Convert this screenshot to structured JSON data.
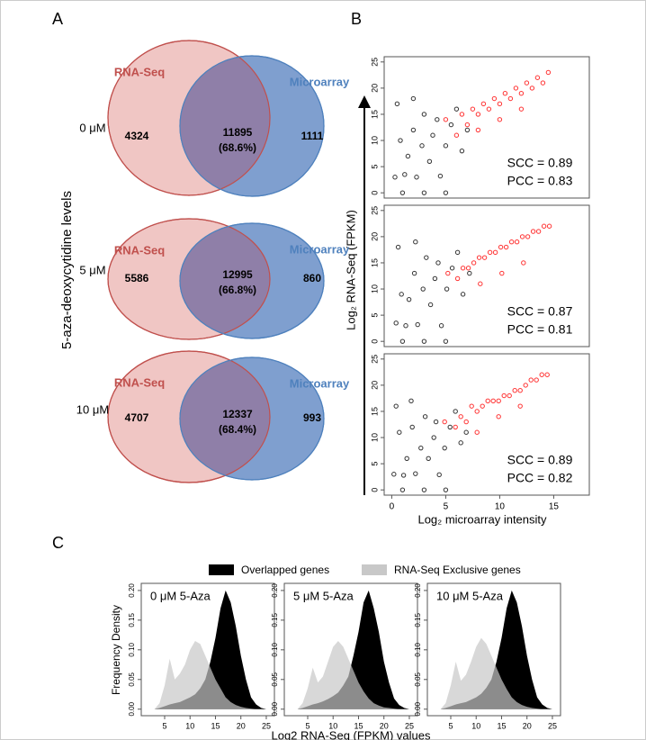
{
  "panels": {
    "a": "A",
    "b": "B",
    "c": "C"
  },
  "venn_axis_label": "5-aza-deoxycytidine levels",
  "scatter_y_label": "Log₂ RNA-Seq (FPKM)",
  "scatter_x_label": "Log₂ microarray intensity",
  "density_y_label": "Frequency Density",
  "density_x_label": "Log2 RNA-Seq (FPKM) values",
  "density_legend": [
    {
      "name": "Overlapped genes",
      "color": "#000000"
    },
    {
      "name": "RNA-Seq Exclusive genes",
      "color": "#c8c8c8"
    }
  ],
  "chart_data": [
    {
      "type": "venn",
      "label": "0 μM",
      "sets": [
        {
          "name": "RNA-Seq",
          "color": "#c0504d"
        },
        {
          "name": "Microarray",
          "color": "#4f81bd"
        }
      ],
      "values": [
        4324,
        11895,
        1111
      ],
      "overlap_share": {
        "value": 68.6,
        "label": "(68.6%)"
      }
    },
    {
      "type": "venn",
      "label": "5 μM",
      "sets": [
        {
          "name": "RNA-Seq",
          "color": "#c0504d"
        },
        {
          "name": "Microarray",
          "color": "#4f81bd"
        }
      ],
      "values": [
        5586,
        12995,
        860
      ],
      "overlap_share": {
        "value": 66.8,
        "label": "(66.8%)"
      }
    },
    {
      "type": "venn",
      "label": "10 μM",
      "sets": [
        {
          "name": "RNA-Seq",
          "color": "#c0504d"
        },
        {
          "name": "Microarray",
          "color": "#4f81bd"
        }
      ],
      "values": [
        4707,
        12337,
        993
      ],
      "overlap_share": {
        "value": 68.4,
        "label": "(68.4%)"
      }
    },
    {
      "type": "scatter",
      "xlim": [
        -0.7,
        18.3
      ],
      "ylim": [
        -1,
        26
      ],
      "xticks": [
        0,
        5,
        10,
        15
      ],
      "yticks": [
        0,
        5,
        10,
        15,
        20,
        25
      ],
      "annotations": [
        "SCC = 0.89",
        "PCC = 0.83"
      ],
      "series": [
        {
          "color": "#000000",
          "x": [
            0.3,
            0.8,
            1.2,
            1.5,
            2,
            2.3,
            2.8,
            3,
            3.5,
            3.8,
            4.2,
            4.5,
            5,
            5.5,
            6,
            6.5,
            7,
            1,
            3,
            5,
            0.5,
            2
          ],
          "y": [
            3,
            10,
            3.5,
            7,
            12,
            3,
            9,
            15,
            6,
            11,
            14,
            3.2,
            9,
            13,
            16,
            8,
            12,
            0,
            0,
            0,
            17,
            18
          ]
        },
        {
          "color": "#ff0000",
          "x": [
            5,
            6,
            6.5,
            7,
            7.5,
            8,
            8.5,
            9,
            9.5,
            10,
            10.5,
            11,
            11.5,
            12,
            12.5,
            13,
            13.5,
            14,
            14.5,
            8,
            10,
            12
          ],
          "y": [
            14,
            11,
            15,
            13,
            16,
            15,
            17,
            16,
            18,
            17,
            19,
            18,
            20,
            19,
            21,
            20,
            22,
            21,
            23,
            12,
            14,
            16
          ]
        }
      ]
    },
    {
      "type": "scatter",
      "xlim": [
        -0.7,
        18.3
      ],
      "ylim": [
        -1,
        26
      ],
      "xticks": [
        0,
        5,
        10,
        15
      ],
      "yticks": [
        0,
        5,
        10,
        15,
        20,
        25
      ],
      "annotations": [
        "SCC = 0.87",
        "PCC = 0.81"
      ],
      "series": [
        {
          "color": "#000000",
          "x": [
            0.4,
            0.9,
            1.3,
            1.6,
            2.1,
            2.4,
            2.9,
            3.2,
            3.6,
            4,
            4.3,
            4.6,
            5.1,
            5.6,
            6.1,
            6.6,
            7.2,
            1,
            3,
            5,
            0.6,
            2.2
          ],
          "y": [
            3.5,
            9,
            3,
            8,
            13,
            3.2,
            10,
            16,
            7,
            12,
            15,
            3,
            10,
            14,
            17,
            9,
            13,
            0,
            0,
            0,
            18,
            19
          ]
        },
        {
          "color": "#ff0000",
          "x": [
            5.2,
            6.1,
            6.6,
            7.1,
            7.6,
            8.1,
            8.6,
            9.1,
            9.6,
            10.1,
            10.6,
            11.1,
            11.6,
            12.1,
            12.6,
            13.1,
            13.6,
            14.1,
            14.6,
            8.2,
            10.2,
            12.2
          ],
          "y": [
            13,
            12,
            14,
            14,
            15,
            16,
            16,
            17,
            17,
            18,
            18,
            19,
            19,
            20,
            20,
            21,
            21,
            22,
            22,
            11,
            13,
            15
          ]
        }
      ]
    },
    {
      "type": "scatter",
      "xlim": [
        -0.7,
        18.3
      ],
      "ylim": [
        -1,
        26
      ],
      "xticks": [
        0,
        5,
        10,
        15
      ],
      "yticks": [
        0,
        5,
        10,
        15,
        20,
        25
      ],
      "annotations": [
        "SCC = 0.89",
        "PCC = 0.82"
      ],
      "series": [
        {
          "color": "#000000",
          "x": [
            0.2,
            0.7,
            1.1,
            1.4,
            1.9,
            2.2,
            2.7,
            3.1,
            3.4,
            3.9,
            4.1,
            4.4,
            4.9,
            5.4,
            5.9,
            6.4,
            6.9,
            1,
            3,
            5,
            0.4,
            1.8
          ],
          "y": [
            3,
            11,
            2.8,
            6,
            12,
            3.1,
            8,
            14,
            6,
            10,
            13,
            2.9,
            8,
            12,
            15,
            9,
            11,
            0,
            0,
            0,
            16,
            17
          ]
        },
        {
          "color": "#ff0000",
          "x": [
            4.9,
            5.9,
            6.4,
            6.9,
            7.4,
            7.9,
            8.4,
            8.9,
            9.4,
            9.9,
            10.4,
            10.9,
            11.4,
            11.9,
            12.4,
            12.9,
            13.4,
            13.9,
            14.4,
            7.9,
            9.9,
            11.9
          ],
          "y": [
            13,
            12,
            14,
            13,
            16,
            15,
            16,
            17,
            17,
            17,
            18,
            18,
            19,
            19,
            20,
            21,
            21,
            22,
            22,
            11,
            14,
            16
          ]
        }
      ]
    },
    {
      "type": "density",
      "title": "0 μM 5-Aza",
      "xlim": [
        0.4,
        26.6
      ],
      "ylim": [
        -0.011,
        0.212
      ],
      "xticks": [
        5,
        10,
        15,
        20,
        25
      ],
      "yticks": [
        {
          "value": 0,
          "label": "0.00"
        },
        0.05,
        {
          "value": 0.1,
          "label": "0.10"
        },
        0.15,
        {
          "value": 0.2,
          "label": "0.20"
        }
      ],
      "x": [
        3,
        4,
        5,
        6,
        7,
        8,
        9,
        10,
        11,
        12,
        13,
        14,
        15,
        16,
        17,
        18,
        19,
        20,
        21,
        22,
        23,
        24,
        25
      ],
      "series": [
        {
          "name": "Overlapped genes",
          "color": "#000000",
          "values": [
            0,
            0.002,
            0.005,
            0.008,
            0.01,
            0.012,
            0.016,
            0.02,
            0.025,
            0.035,
            0.05,
            0.08,
            0.12,
            0.17,
            0.2,
            0.18,
            0.14,
            0.09,
            0.05,
            0.02,
            0.008,
            0.002,
            0
          ]
        },
        {
          "name": "RNA-Seq Exclusive genes",
          "color": "#c8c8c8",
          "values": [
            0,
            0.01,
            0.04,
            0.085,
            0.05,
            0.06,
            0.075,
            0.1,
            0.115,
            0.11,
            0.09,
            0.07,
            0.05,
            0.035,
            0.02,
            0.012,
            0.007,
            0.004,
            0.002,
            0.001,
            0,
            0,
            0
          ]
        }
      ]
    },
    {
      "type": "density",
      "title": "5 μM 5-Aza",
      "xlim": [
        0.4,
        26.6
      ],
      "ylim": [
        -0.011,
        0.212
      ],
      "xticks": [
        5,
        10,
        15,
        20,
        25
      ],
      "yticks": [
        {
          "value": 0,
          "label": "0.00"
        },
        0.05,
        {
          "value": 0.1,
          "label": "0.10"
        },
        0.15,
        {
          "value": 0.2,
          "label": "0.20"
        }
      ],
      "x": [
        3,
        4,
        5,
        6,
        7,
        8,
        9,
        10,
        11,
        12,
        13,
        14,
        15,
        16,
        17,
        18,
        19,
        20,
        21,
        22,
        23,
        24,
        25
      ],
      "series": [
        {
          "name": "Overlapped genes",
          "color": "#000000",
          "values": [
            0,
            0.002,
            0.005,
            0.008,
            0.01,
            0.013,
            0.017,
            0.022,
            0.028,
            0.04,
            0.055,
            0.09,
            0.13,
            0.18,
            0.2,
            0.17,
            0.13,
            0.08,
            0.045,
            0.018,
            0.007,
            0.002,
            0
          ]
        },
        {
          "name": "RNA-Seq Exclusive genes",
          "color": "#c8c8c8",
          "values": [
            0,
            0.01,
            0.035,
            0.07,
            0.045,
            0.055,
            0.08,
            0.105,
            0.115,
            0.105,
            0.085,
            0.065,
            0.045,
            0.03,
            0.018,
            0.01,
            0.006,
            0.003,
            0.002,
            0.001,
            0,
            0,
            0
          ]
        }
      ]
    },
    {
      "type": "density",
      "title": "10 μM 5-Aza",
      "xlim": [
        0.4,
        26.6
      ],
      "ylim": [
        -0.011,
        0.212
      ],
      "xticks": [
        5,
        10,
        15,
        20,
        25
      ],
      "yticks": [
        {
          "value": 0,
          "label": "0.00"
        },
        0.05,
        {
          "value": 0.1,
          "label": "0.10"
        },
        0.15,
        {
          "value": 0.2,
          "label": "0.20"
        }
      ],
      "x": [
        3,
        4,
        5,
        6,
        7,
        8,
        9,
        10,
        11,
        12,
        13,
        14,
        15,
        16,
        17,
        18,
        19,
        20,
        21,
        22,
        23,
        24,
        25
      ],
      "series": [
        {
          "name": "Overlapped genes",
          "color": "#000000",
          "values": [
            0,
            0.002,
            0.005,
            0.008,
            0.01,
            0.012,
            0.016,
            0.02,
            0.026,
            0.036,
            0.05,
            0.08,
            0.12,
            0.17,
            0.2,
            0.18,
            0.14,
            0.09,
            0.05,
            0.02,
            0.008,
            0.002,
            0
          ]
        },
        {
          "name": "RNA-Seq Exclusive genes",
          "color": "#c8c8c8",
          "values": [
            0,
            0.01,
            0.04,
            0.08,
            0.048,
            0.058,
            0.08,
            0.105,
            0.12,
            0.11,
            0.09,
            0.07,
            0.05,
            0.034,
            0.02,
            0.012,
            0.007,
            0.004,
            0.002,
            0.001,
            0,
            0,
            0
          ]
        }
      ]
    }
  ]
}
